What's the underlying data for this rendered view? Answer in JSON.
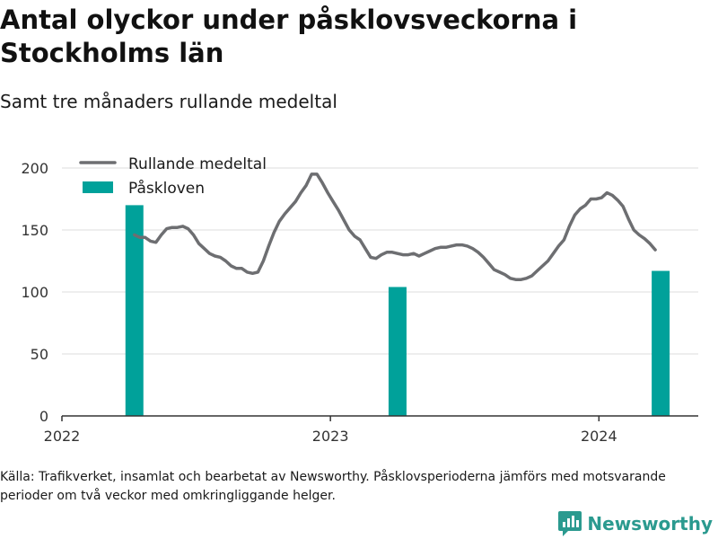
{
  "title": "Antal olyckor under påsklovsveckorna i Stockholms län",
  "subtitle": "Samt tre månaders rullande medeltal",
  "source": "Källa: Trafikverket, insamlat och bearbetat av Newsworthy. Påsklovsperioderna jämförs med motsvarande perioder om två veckor med omkringliggande helger.",
  "brand": {
    "name": "Newsworthy",
    "icon": "newsworthy-logo-icon",
    "color": "#2b9a8f"
  },
  "chart_data": {
    "type": "bar+line",
    "ylim": [
      0,
      200
    ],
    "yticks": [
      0,
      50,
      100,
      150,
      200
    ],
    "xlim": [
      2022.0,
      2024.37
    ],
    "xticks": [
      2022,
      2023,
      2024
    ],
    "xtick_labels": [
      "2022",
      "2023",
      "2024"
    ],
    "grid": true,
    "legend": "top-left",
    "series": [
      {
        "name": "Rullande medeltal",
        "type": "line",
        "color": "#6d6e71",
        "x": [
          2022.27,
          2022.29,
          2022.31,
          2022.33,
          2022.35,
          2022.37,
          2022.39,
          2022.41,
          2022.43,
          2022.45,
          2022.47,
          2022.49,
          2022.51,
          2022.53,
          2022.55,
          2022.57,
          2022.59,
          2022.61,
          2022.63,
          2022.65,
          2022.67,
          2022.69,
          2022.71,
          2022.73,
          2022.75,
          2022.77,
          2022.79,
          2022.81,
          2022.83,
          2022.85,
          2022.87,
          2022.89,
          2022.91,
          2022.93,
          2022.95,
          2022.97,
          2022.99,
          2023.01,
          2023.03,
          2023.05,
          2023.07,
          2023.09,
          2023.11,
          2023.13,
          2023.15,
          2023.17,
          2023.19,
          2023.21,
          2023.23,
          2023.25,
          2023.27,
          2023.29,
          2023.31,
          2023.33,
          2023.35,
          2023.37,
          2023.39,
          2023.41,
          2023.43,
          2023.45,
          2023.47,
          2023.49,
          2023.51,
          2023.53,
          2023.55,
          2023.57,
          2023.59,
          2023.61,
          2023.63,
          2023.65,
          2023.67,
          2023.69,
          2023.71,
          2023.73,
          2023.75,
          2023.77,
          2023.79,
          2023.81,
          2023.83,
          2023.85,
          2023.87,
          2023.89,
          2023.91,
          2023.93,
          2023.95,
          2023.97,
          2023.99,
          2024.01,
          2024.03,
          2024.05,
          2024.07,
          2024.09,
          2024.11,
          2024.13,
          2024.15,
          2024.17,
          2024.19,
          2024.21
        ],
        "values": [
          146,
          144,
          144,
          141,
          140,
          146,
          151,
          152,
          152,
          153,
          151,
          146,
          139,
          135,
          131,
          129,
          128,
          125,
          121,
          119,
          119,
          116,
          115,
          116,
          125,
          137,
          148,
          157,
          163,
          168,
          173,
          180,
          186,
          195,
          195,
          188,
          180,
          173,
          166,
          158,
          150,
          145,
          142,
          135,
          128,
          127,
          130,
          132,
          132,
          131,
          130,
          130,
          131,
          129,
          131,
          133,
          135,
          136,
          136,
          137,
          138,
          138,
          137,
          135,
          132,
          128,
          123,
          118,
          116,
          114,
          111,
          110,
          110,
          111,
          113,
          117,
          121,
          125,
          131,
          137,
          142,
          153,
          162,
          167,
          170,
          175,
          175,
          176,
          180,
          178,
          174,
          169,
          159,
          150,
          146,
          143,
          139,
          134
        ]
      },
      {
        "name": "Påskloven",
        "type": "bar",
        "color": "#00a19a",
        "x": [
          2022.27,
          2023.25,
          2024.23
        ],
        "values": [
          170,
          104,
          117
        ]
      }
    ]
  }
}
